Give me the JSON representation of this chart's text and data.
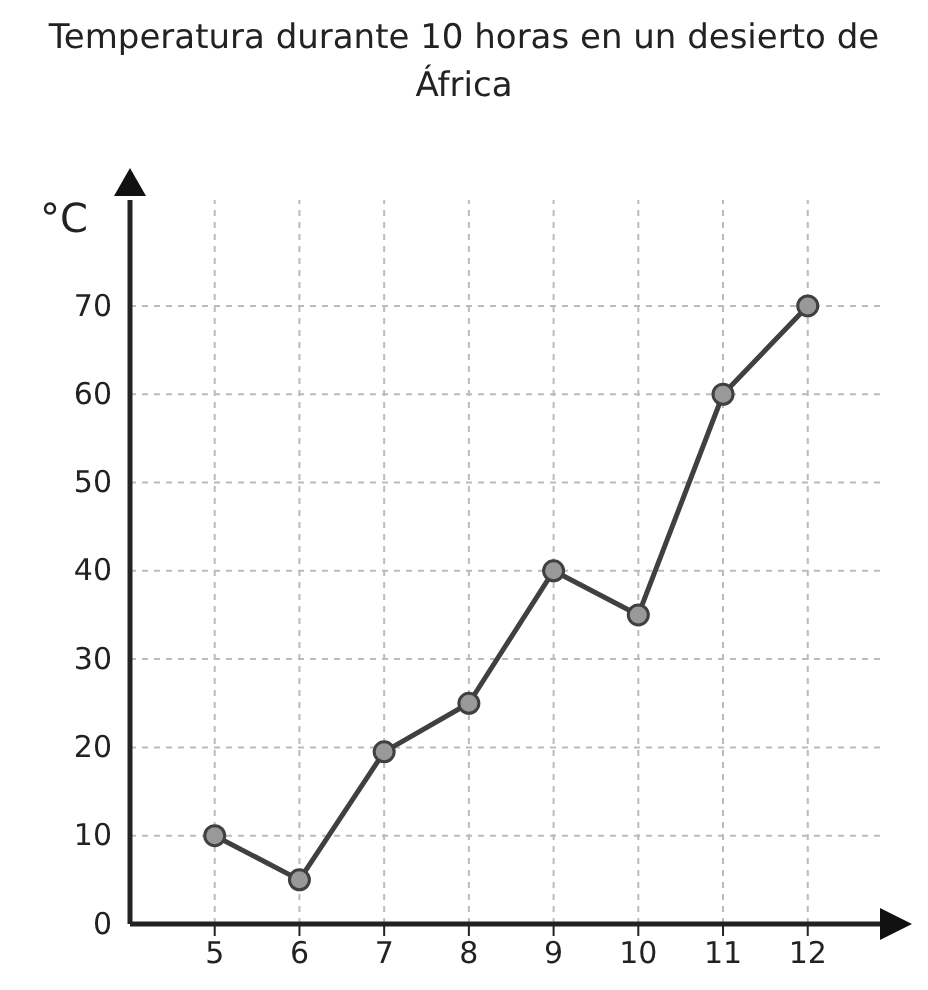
{
  "chart_data": {
    "type": "line",
    "title": "Temperatura durante 10 horas en un desierto de África",
    "ylabel": "°C",
    "x": [
      5,
      6,
      7,
      8,
      9,
      10,
      11,
      12
    ],
    "series": [
      {
        "color": "#404040",
        "values": [
          10,
          5,
          19.5,
          25,
          40,
          35,
          60,
          70
        ]
      }
    ],
    "xlim": [
      4,
      12.9
    ],
    "ylim": [
      0,
      82
    ],
    "xticks": [
      5,
      6,
      7,
      8,
      9,
      10,
      11,
      12
    ],
    "yticks": [
      0,
      10,
      20,
      30,
      40,
      50,
      60,
      70
    ],
    "grid": true,
    "marker": "circle",
    "line_style": "solid"
  }
}
